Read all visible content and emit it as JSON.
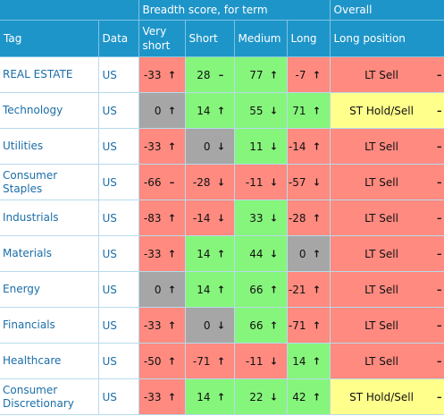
{
  "headers": {
    "breadth_group": "Breadth score, for term",
    "overall_group": "Overall",
    "tag": "Tag",
    "data": "Data",
    "very_short": "Very short",
    "short": "Short",
    "medium": "Medium",
    "long": "Long",
    "long_position": "Long position"
  },
  "colors": {
    "red": "#ff8a80",
    "green": "#86f57c",
    "grey": "#a6a6a6",
    "yellow": "#ffff8c",
    "header": "#1e95c9"
  },
  "rows": [
    {
      "tag": "REAL ESTATE",
      "data": "US",
      "scores": [
        {
          "v": "-33",
          "i": "↑",
          "c": "red"
        },
        {
          "v": "28",
          "i": "–",
          "c": "green"
        },
        {
          "v": "77",
          "i": "↑",
          "c": "green"
        },
        {
          "v": "-7",
          "i": "↑",
          "c": "red"
        }
      ],
      "pos": {
        "label": "LT Sell",
        "i": "–",
        "c": "red"
      }
    },
    {
      "tag": "Technology",
      "data": "US",
      "scores": [
        {
          "v": "0",
          "i": "↑",
          "c": "grey"
        },
        {
          "v": "14",
          "i": "↑",
          "c": "green"
        },
        {
          "v": "55",
          "i": "↓",
          "c": "green"
        },
        {
          "v": "71",
          "i": "↑",
          "c": "green"
        }
      ],
      "pos": {
        "label": "ST Hold/Sell",
        "i": "–",
        "c": "yellow"
      }
    },
    {
      "tag": "Utilities",
      "data": "US",
      "scores": [
        {
          "v": "-33",
          "i": "↑",
          "c": "red"
        },
        {
          "v": "0",
          "i": "↓",
          "c": "grey"
        },
        {
          "v": "11",
          "i": "↓",
          "c": "green"
        },
        {
          "v": "-14",
          "i": "↑",
          "c": "red"
        }
      ],
      "pos": {
        "label": "LT Sell",
        "i": "–",
        "c": "red"
      }
    },
    {
      "tag": "Consumer Staples",
      "data": "US",
      "scores": [
        {
          "v": "-66",
          "i": "–",
          "c": "red"
        },
        {
          "v": "-28",
          "i": "↓",
          "c": "red"
        },
        {
          "v": "-11",
          "i": "↓",
          "c": "red"
        },
        {
          "v": "-57",
          "i": "↓",
          "c": "red"
        }
      ],
      "pos": {
        "label": "LT Sell",
        "i": "–",
        "c": "red"
      }
    },
    {
      "tag": "Industrials",
      "data": "US",
      "scores": [
        {
          "v": "-83",
          "i": "↑",
          "c": "red"
        },
        {
          "v": "-14",
          "i": "↓",
          "c": "red"
        },
        {
          "v": "33",
          "i": "↓",
          "c": "green"
        },
        {
          "v": "-28",
          "i": "↑",
          "c": "red"
        }
      ],
      "pos": {
        "label": "LT Sell",
        "i": "–",
        "c": "red"
      }
    },
    {
      "tag": "Materials",
      "data": "US",
      "scores": [
        {
          "v": "-33",
          "i": "↑",
          "c": "red"
        },
        {
          "v": "14",
          "i": "↑",
          "c": "green"
        },
        {
          "v": "44",
          "i": "↓",
          "c": "green"
        },
        {
          "v": "0",
          "i": "↑",
          "c": "grey"
        }
      ],
      "pos": {
        "label": "LT Sell",
        "i": "–",
        "c": "red"
      }
    },
    {
      "tag": "Energy",
      "data": "US",
      "scores": [
        {
          "v": "0",
          "i": "↑",
          "c": "grey"
        },
        {
          "v": "14",
          "i": "↑",
          "c": "green"
        },
        {
          "v": "66",
          "i": "↑",
          "c": "green"
        },
        {
          "v": "-21",
          "i": "↑",
          "c": "red"
        }
      ],
      "pos": {
        "label": "LT Sell",
        "i": "–",
        "c": "red"
      }
    },
    {
      "tag": "Financials",
      "data": "US",
      "scores": [
        {
          "v": "-33",
          "i": "↑",
          "c": "red"
        },
        {
          "v": "0",
          "i": "↓",
          "c": "grey"
        },
        {
          "v": "66",
          "i": "↑",
          "c": "green"
        },
        {
          "v": "-71",
          "i": "↑",
          "c": "red"
        }
      ],
      "pos": {
        "label": "LT Sell",
        "i": "–",
        "c": "red"
      }
    },
    {
      "tag": "Healthcare",
      "data": "US",
      "scores": [
        {
          "v": "-50",
          "i": "↑",
          "c": "red"
        },
        {
          "v": "-71",
          "i": "↑",
          "c": "red"
        },
        {
          "v": "-11",
          "i": "↓",
          "c": "red"
        },
        {
          "v": "14",
          "i": "↑",
          "c": "green"
        }
      ],
      "pos": {
        "label": "LT Sell",
        "i": "–",
        "c": "red"
      }
    },
    {
      "tag": "Consumer Discretionary",
      "data": "US",
      "scores": [
        {
          "v": "-33",
          "i": "↑",
          "c": "red"
        },
        {
          "v": "14",
          "i": "↑",
          "c": "green"
        },
        {
          "v": "22",
          "i": "↓",
          "c": "green"
        },
        {
          "v": "42",
          "i": "↑",
          "c": "green"
        }
      ],
      "pos": {
        "label": "ST Hold/Sell",
        "i": "–",
        "c": "yellow"
      }
    }
  ]
}
